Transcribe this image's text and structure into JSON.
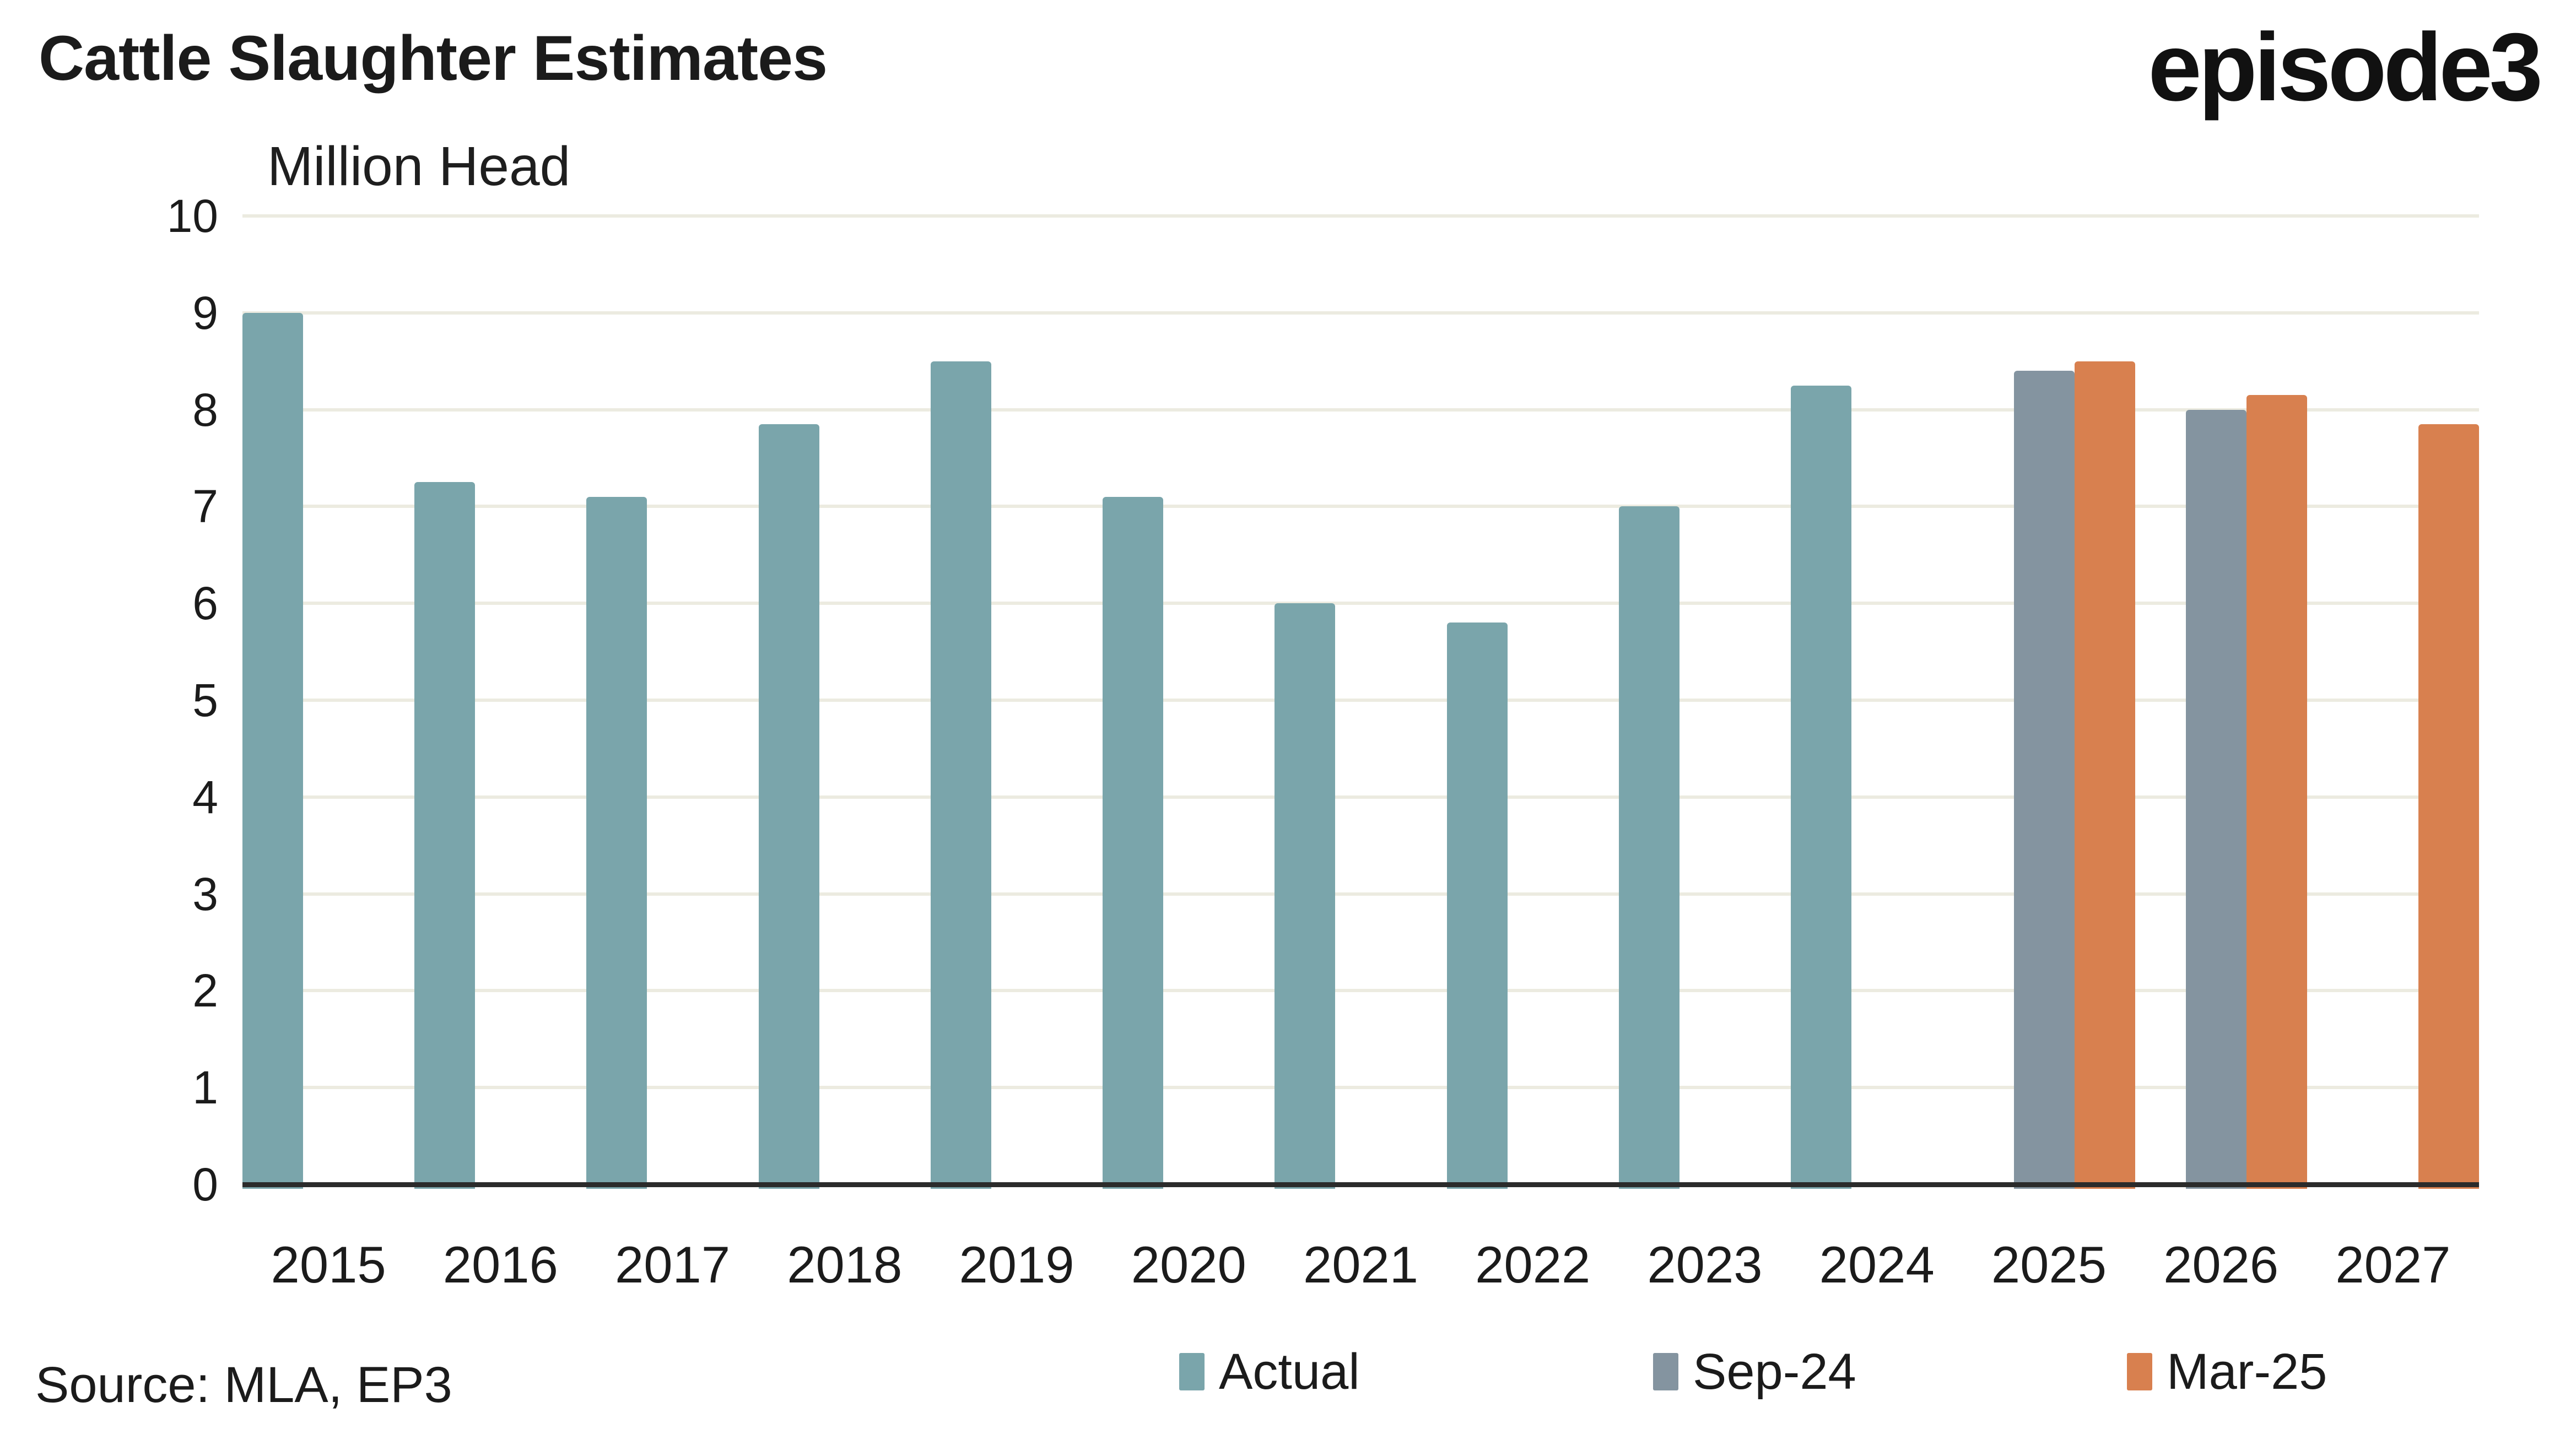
{
  "header": {
    "title": "Cattle Slaughter Estimates",
    "logo": "episode3"
  },
  "source": {
    "label": "Source: MLA, EP3"
  },
  "chart_data": {
    "type": "bar",
    "title": "Cattle Slaughter Estimates",
    "ylabel": "Million Head",
    "xlabel": "",
    "categories": [
      "2015",
      "2016",
      "2017",
      "2018",
      "2019",
      "2020",
      "2021",
      "2022",
      "2023",
      "2024",
      "2025",
      "2026",
      "2027"
    ],
    "series": [
      {
        "name": "Actual",
        "color": "#7AA5AB",
        "values": [
          9.0,
          7.25,
          7.1,
          7.85,
          8.5,
          7.1,
          6.0,
          5.8,
          7.0,
          8.25,
          null,
          null,
          null
        ]
      },
      {
        "name": "Sep-24",
        "color": "#8494A0",
        "values": [
          null,
          null,
          null,
          null,
          null,
          null,
          null,
          null,
          null,
          null,
          8.4,
          8.0,
          null
        ]
      },
      {
        "name": "Mar-25",
        "color": "#D8804F",
        "values": [
          null,
          null,
          null,
          null,
          null,
          null,
          null,
          null,
          null,
          null,
          8.5,
          8.15,
          7.85
        ]
      }
    ],
    "ylim": [
      0,
      10
    ],
    "yticks": [
      0,
      1,
      2,
      3,
      4,
      5,
      6,
      7,
      8,
      9,
      10
    ],
    "grid": true,
    "gridline_color": "#ECEBE0",
    "axis_color": "#2B2B2B",
    "legend_position": "bottom"
  }
}
